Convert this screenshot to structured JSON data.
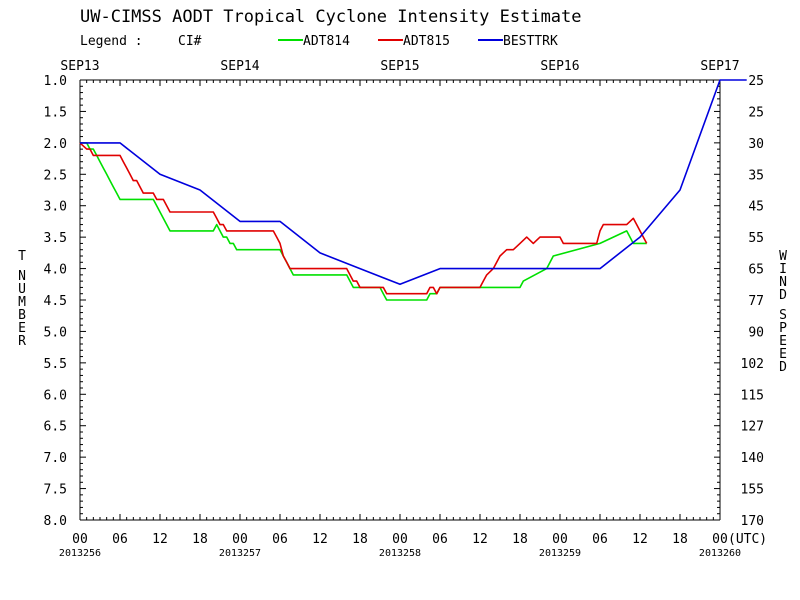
{
  "colors": {
    "background": "#ffffff",
    "axis": "#000000",
    "adt814": "#00e000",
    "adt815": "#e00000",
    "besttrk": "#0000dd"
  },
  "chart_data": {
    "type": "line",
    "title": "UW-CIMSS AODT Tropical Cyclone Intensity Estimate",
    "legend_label": "Legend :",
    "legend_ci": "CI#",
    "legend_placement": "top",
    "ylabel_left": "T NUMBER",
    "ylabel_right": "WIND SPEED",
    "x_unit": "(UTC)",
    "grid": false,
    "xlim_hours": [
      0,
      96
    ],
    "ylim": [
      1.0,
      8.0
    ],
    "y_inverted": true,
    "date_labels": [
      "SEP13",
      "SEP14",
      "SEP15",
      "SEP16",
      "SEP17"
    ],
    "julian_labels": [
      "2013256",
      "2013257",
      "2013258",
      "2013259",
      "2013260"
    ],
    "x_tick_labels": [
      "00",
      "06",
      "12",
      "18",
      "00",
      "06",
      "12",
      "18",
      "00",
      "06",
      "12",
      "18",
      "00",
      "06",
      "12",
      "18",
      "00"
    ],
    "y_ticks_left": [
      "1.0",
      "1.5",
      "2.0",
      "2.5",
      "3.0",
      "3.5",
      "4.0",
      "4.5",
      "5.0",
      "5.5",
      "6.0",
      "6.5",
      "7.0",
      "7.5",
      "8.0"
    ],
    "y_ticks_right": [
      "25",
      "25",
      "30",
      "35",
      "45",
      "55",
      "65",
      "77",
      "90",
      "102",
      "115",
      "127",
      "140",
      "155",
      "170"
    ],
    "series": [
      {
        "name": "ADT814",
        "color": "#00e000",
        "x_hours": [
          0,
          1,
          1.5,
          2,
          2.5,
          3,
          3.5,
          4,
          4.5,
          5,
          5.5,
          6,
          6.5,
          7,
          11,
          11.5,
          12,
          12.5,
          13,
          13.5,
          20,
          20.5,
          21,
          21.5,
          22,
          22.5,
          23,
          23.5,
          24,
          30,
          30.5,
          31,
          31.5,
          32,
          32.5,
          40,
          40.5,
          41,
          41.5,
          42,
          45,
          45.5,
          46,
          52,
          52.5,
          53,
          53.5,
          54,
          66,
          66.5,
          70,
          71,
          78,
          82,
          82.5,
          83,
          83.5,
          84,
          85
        ],
        "values": [
          2.0,
          2.0,
          2.1,
          2.1,
          2.2,
          2.3,
          2.4,
          2.5,
          2.6,
          2.7,
          2.8,
          2.9,
          2.9,
          2.9,
          2.9,
          3.0,
          3.1,
          3.2,
          3.3,
          3.4,
          3.4,
          3.3,
          3.4,
          3.5,
          3.5,
          3.6,
          3.6,
          3.7,
          3.7,
          3.7,
          3.8,
          3.9,
          4.0,
          4.1,
          4.1,
          4.1,
          4.2,
          4.3,
          4.3,
          4.3,
          4.3,
          4.4,
          4.5,
          4.5,
          4.4,
          4.4,
          4.4,
          4.3,
          4.3,
          4.2,
          4.0,
          3.8,
          3.6,
          3.4,
          3.5,
          3.6,
          3.6,
          3.6,
          3.6
        ]
      },
      {
        "name": "ADT815",
        "color": "#e00000",
        "x_hours": [
          0,
          1,
          1.5,
          2,
          2.5,
          3,
          6,
          6.5,
          7,
          7.5,
          8,
          8.5,
          9,
          9.5,
          10,
          11,
          11.5,
          12,
          12.5,
          13,
          13.5,
          20,
          20.5,
          21,
          21.5,
          22,
          22.5,
          29,
          29.5,
          30,
          30.5,
          31,
          31.5,
          40,
          40.5,
          41,
          41.5,
          42,
          45,
          45.5,
          46,
          52,
          52.5,
          53,
          53.5,
          54,
          60,
          60.5,
          61,
          62,
          63,
          64,
          65,
          66,
          67,
          68,
          69,
          72,
          72.5,
          73,
          74,
          77.5,
          78,
          78.5,
          79,
          82,
          83,
          83.5,
          84,
          85
        ],
        "values": [
          2.0,
          2.1,
          2.1,
          2.2,
          2.2,
          2.2,
          2.2,
          2.3,
          2.4,
          2.5,
          2.6,
          2.6,
          2.7,
          2.8,
          2.8,
          2.8,
          2.9,
          2.9,
          2.9,
          3.0,
          3.1,
          3.1,
          3.2,
          3.3,
          3.3,
          3.4,
          3.4,
          3.4,
          3.5,
          3.6,
          3.8,
          3.9,
          4.0,
          4.0,
          4.1,
          4.2,
          4.2,
          4.3,
          4.3,
          4.3,
          4.4,
          4.4,
          4.3,
          4.3,
          4.4,
          4.3,
          4.3,
          4.2,
          4.1,
          4.0,
          3.8,
          3.7,
          3.7,
          3.6,
          3.5,
          3.6,
          3.5,
          3.5,
          3.6,
          3.6,
          3.6,
          3.6,
          3.4,
          3.3,
          3.3,
          3.3,
          3.2,
          3.3,
          3.4,
          3.6
        ]
      },
      {
        "name": "BESTTRK",
        "color": "#0000dd",
        "x_hours": [
          0,
          6,
          12,
          18,
          24,
          30,
          36,
          42,
          48,
          54,
          60,
          66,
          72,
          78,
          84,
          90,
          96,
          100
        ],
        "values": [
          2.0,
          2.0,
          2.5,
          2.75,
          3.25,
          3.25,
          3.75,
          4.0,
          4.25,
          4.0,
          4.0,
          4.0,
          4.0,
          4.0,
          3.5,
          2.75,
          1.0,
          1.0
        ]
      }
    ]
  }
}
